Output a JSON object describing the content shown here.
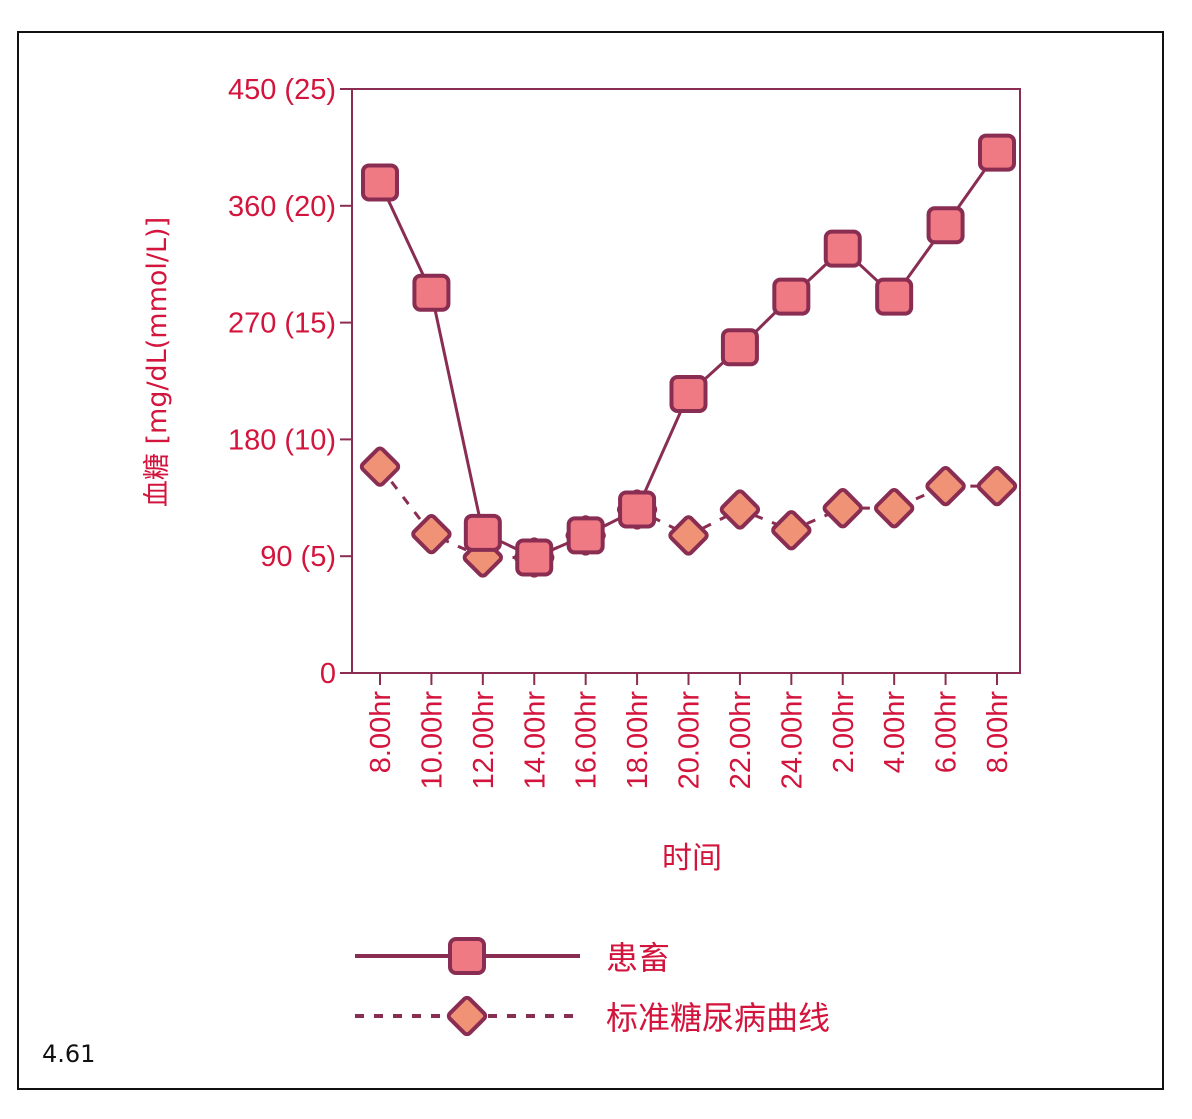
{
  "figure_number": "4.61",
  "colors": {
    "text": "#d3143c",
    "line": "#8a2d52",
    "square_fill": "#f07a84",
    "diamond_fill": "#ef9276"
  },
  "chart_data": {
    "type": "line",
    "title": "",
    "xlabel": "时间",
    "ylabel": "血糖 [mg/dL(mmol/L)]",
    "ylim": [
      0,
      450
    ],
    "yticks": [
      0,
      90,
      180,
      270,
      360,
      450
    ],
    "ytick_labels": [
      "0",
      "90 (5)",
      "180 (10)",
      "270 (15)",
      "360 (20)",
      "450 (25)"
    ],
    "categories": [
      "8.00hr",
      "10.00hr",
      "12.00hr",
      "14.00hr",
      "16.00hr",
      "18.00hr",
      "20.00hr",
      "22.00hr",
      "24.00hr",
      "2.00hr",
      "4.00hr",
      "6.00hr",
      "8.00hr"
    ],
    "series": [
      {
        "name": "患畜",
        "style": "solid",
        "marker": "square",
        "values": [
          378,
          293,
          108,
          89,
          106,
          126,
          215,
          251,
          290,
          327,
          290,
          345,
          401
        ]
      },
      {
        "name": "标准糖尿病曲线",
        "style": "dashed",
        "marker": "diamond",
        "values": [
          159,
          107,
          89,
          89,
          106,
          126,
          106,
          126,
          110,
          127,
          127,
          144,
          144
        ]
      }
    ],
    "legend": "bottom",
    "grid": false
  }
}
